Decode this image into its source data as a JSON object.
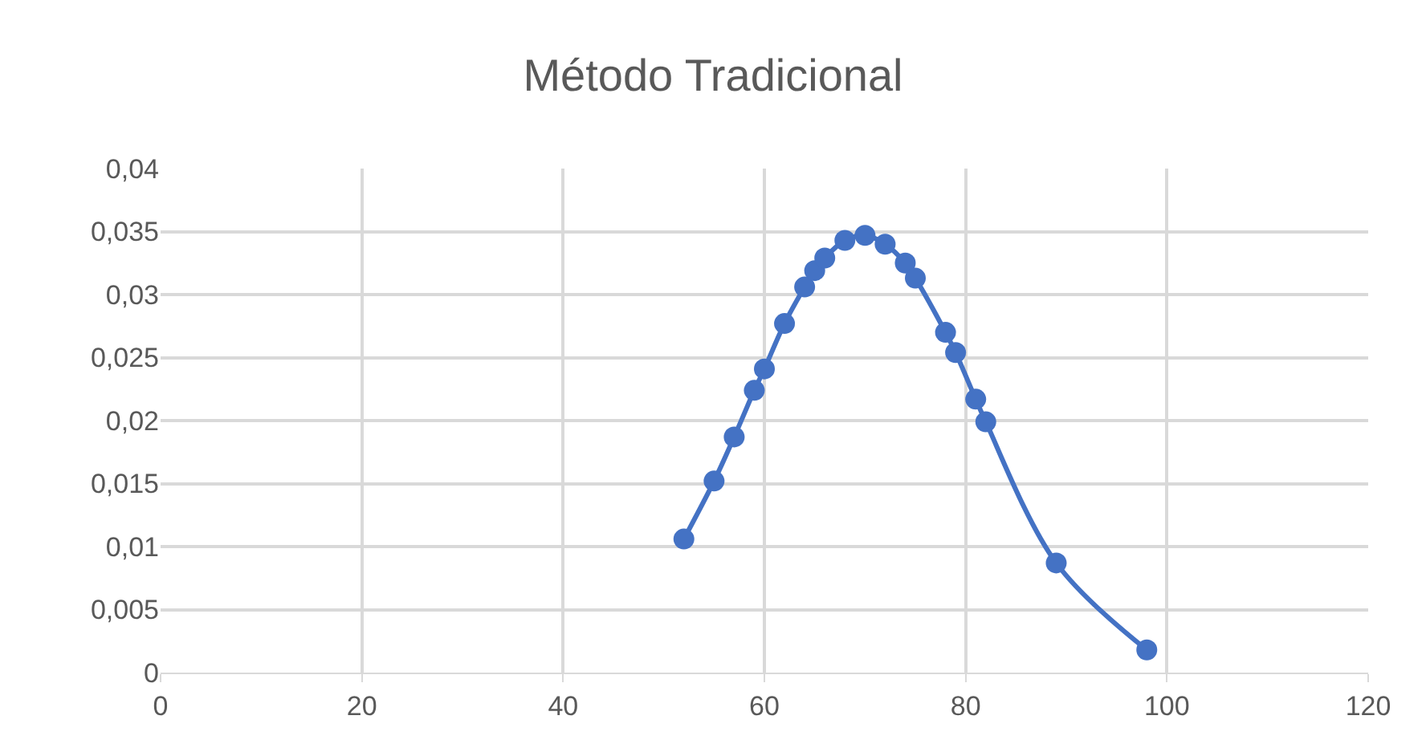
{
  "chart_data": {
    "type": "line",
    "title": "Método Tradicional",
    "x": [
      52,
      55,
      57,
      59,
      60,
      62,
      64,
      65,
      66,
      68,
      70,
      72,
      74,
      75,
      78,
      79,
      81,
      82,
      89,
      98
    ],
    "series": [
      {
        "color": "#4472c4",
        "values": [
          0.0106,
          0.0152,
          0.0187,
          0.0224,
          0.0241,
          0.0277,
          0.0306,
          0.0319,
          0.0329,
          0.0343,
          0.0347,
          0.034,
          0.0325,
          0.0313,
          0.027,
          0.0254,
          0.0217,
          0.0199,
          0.0087,
          0.0018
        ]
      }
    ],
    "xlim": [
      0,
      120
    ],
    "xticks": [
      0,
      20,
      40,
      60,
      80,
      100,
      120
    ],
    "ylim": [
      0,
      0.04
    ],
    "yticks": [
      {
        "value": 0,
        "label": "0"
      },
      {
        "value": 0.005,
        "label": "0,005"
      },
      {
        "value": 0.01,
        "label": "0,01"
      },
      {
        "value": 0.015,
        "label": "0,015"
      },
      {
        "value": 0.02,
        "label": "0,02"
      },
      {
        "value": 0.025,
        "label": "0,025"
      },
      {
        "value": 0.03,
        "label": "0,03"
      },
      {
        "value": 0.035,
        "label": "0,035"
      },
      {
        "value": 0.04,
        "label": "0,04"
      }
    ],
    "grid": true,
    "marker": "circle",
    "line_style": "solid",
    "legend": false
  }
}
